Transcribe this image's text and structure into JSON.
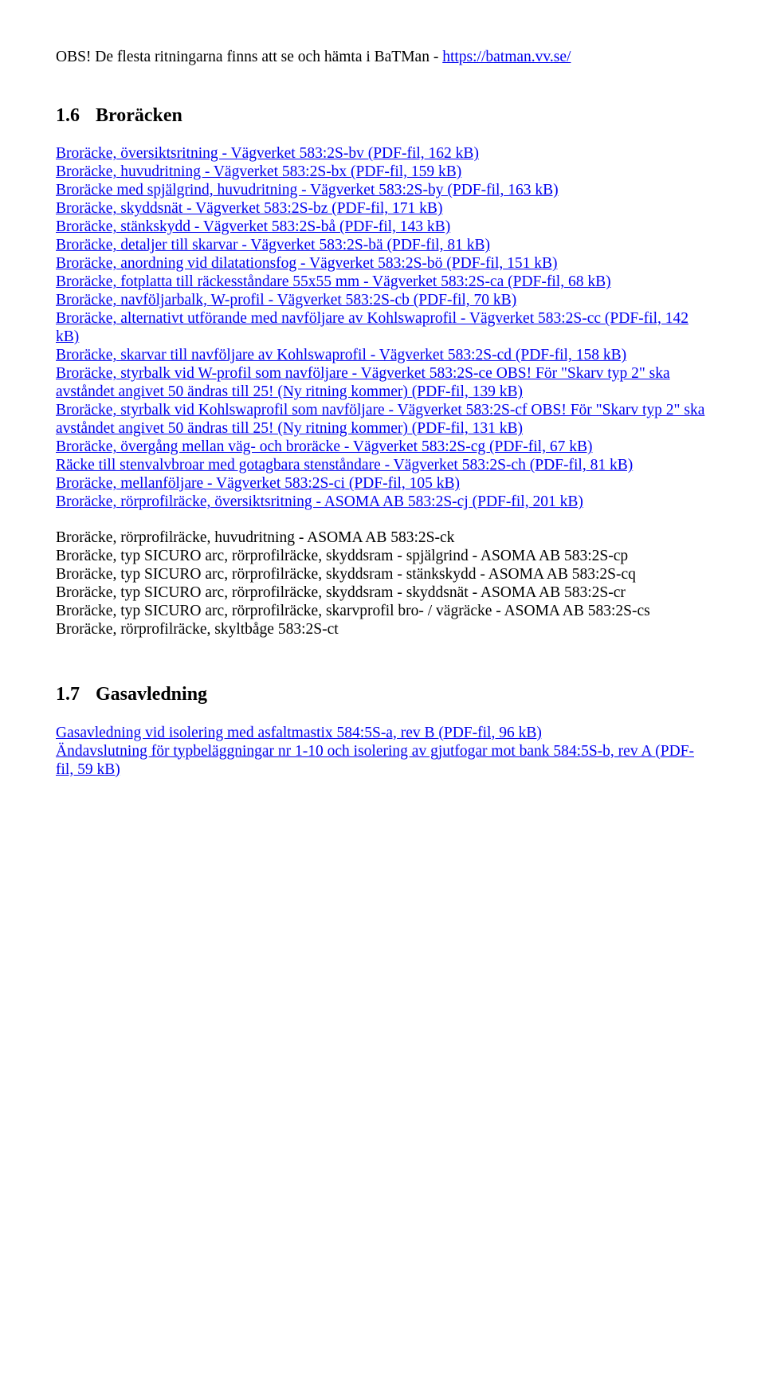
{
  "header": {
    "prefix": "OBS! De flesta ritningarna finns att se och hämta  i BaTMan - ",
    "url": "https://batman.vv.se/"
  },
  "section1": {
    "num": "1.6",
    "title": "Broräcken",
    "links": [
      "Broräcke, översiktsritning - Vägverket 583:2S-bv (PDF-fil, 162 kB)",
      "Broräcke, huvudritning - Vägverket 583:2S-bx (PDF-fil, 159 kB)",
      "Broräcke med spjälgrind, huvudritning - Vägverket 583:2S-by (PDF-fil, 163 kB)",
      "Broräcke, skyddsnät - Vägverket 583:2S-bz (PDF-fil, 171 kB)",
      "Broräcke, stänkskydd - Vägverket 583:2S-bå (PDF-fil, 143 kB)",
      "Broräcke, detaljer till skarvar - Vägverket 583:2S-bä (PDF-fil, 81 kB)",
      "Broräcke, anordning vid dilatationsfog - Vägverket 583:2S-bö (PDF-fil, 151 kB)",
      "Broräcke, fotplatta till räckesståndare 55x55 mm - Vägverket 583:2S-ca (PDF-fil, 68 kB)",
      "Broräcke, navföljarbalk, W-profil - Vägverket 583:2S-cb (PDF-fil, 70 kB)",
      "Broräcke, alternativt utförande med navföljare av Kohlswaprofil - Vägverket 583:2S-cc (PDF-fil, 142 kB)",
      "Broräcke, skarvar till navföljare av Kohlswaprofil - Vägverket 583:2S-cd (PDF-fil, 158 kB)",
      "Broräcke, styrbalk vid W-profil som navföljare - Vägverket 583:2S-ce OBS! För \"Skarv typ 2\" ska avståndet angivet 50 ändras till 25! (Ny ritning kommer) (PDF-fil, 139 kB)",
      "Broräcke, styrbalk vid Kohlswaprofil som navföljare - Vägverket 583:2S-cf OBS! För \"Skarv typ 2\" ska avståndet angivet 50 ändras till 25! (Ny ritning kommer) (PDF-fil, 131 kB)",
      "Broräcke, övergång mellan väg- och broräcke - Vägverket 583:2S-cg (PDF-fil, 67 kB)",
      "Räcke till stenvalvbroar med gotagbara stenståndare - Vägverket 583:2S-ch (PDF-fil, 81 kB)",
      "Broräcke, mellanföljare - Vägverket 583:2S-ci (PDF-fil, 105 kB)",
      "Broräcke, rörprofilräcke, översiktsritning  - ASOMA AB 583:2S-cj (PDF-fil, 201 kB)"
    ],
    "plain": [
      "Broräcke, rörprofilräcke, huvudritning  - ASOMA AB 583:2S-ck",
      "Broräcke, typ SICURO arc, rörprofilräcke, skyddsram - spjälgrind - ASOMA AB 583:2S-cp",
      "Broräcke, typ SICURO arc, rörprofilräcke, skyddsram - stänkskydd - ASOMA AB 583:2S-cq",
      "Broräcke, typ SICURO arc, rörprofilräcke, skyddsram - skyddsnät - ASOMA AB 583:2S-cr",
      "Broräcke, typ SICURO arc, rörprofilräcke, skarvprofil bro- / vägräcke - ASOMA AB 583:2S-cs",
      "Broräcke, rörprofilräcke, skyltbåge 583:2S-ct"
    ]
  },
  "section2": {
    "num": "1.7",
    "title": "Gasavledning",
    "links": [
      "Gasavledning vid isolering med asfaltmastix 584:5S-a, rev B (PDF-fil, 96 kB)",
      "Ändavslutning för typbeläggningar nr 1-10 och isolering av gjutfogar mot bank 584:5S-b, rev A (PDF-fil, 59 kB)"
    ]
  }
}
